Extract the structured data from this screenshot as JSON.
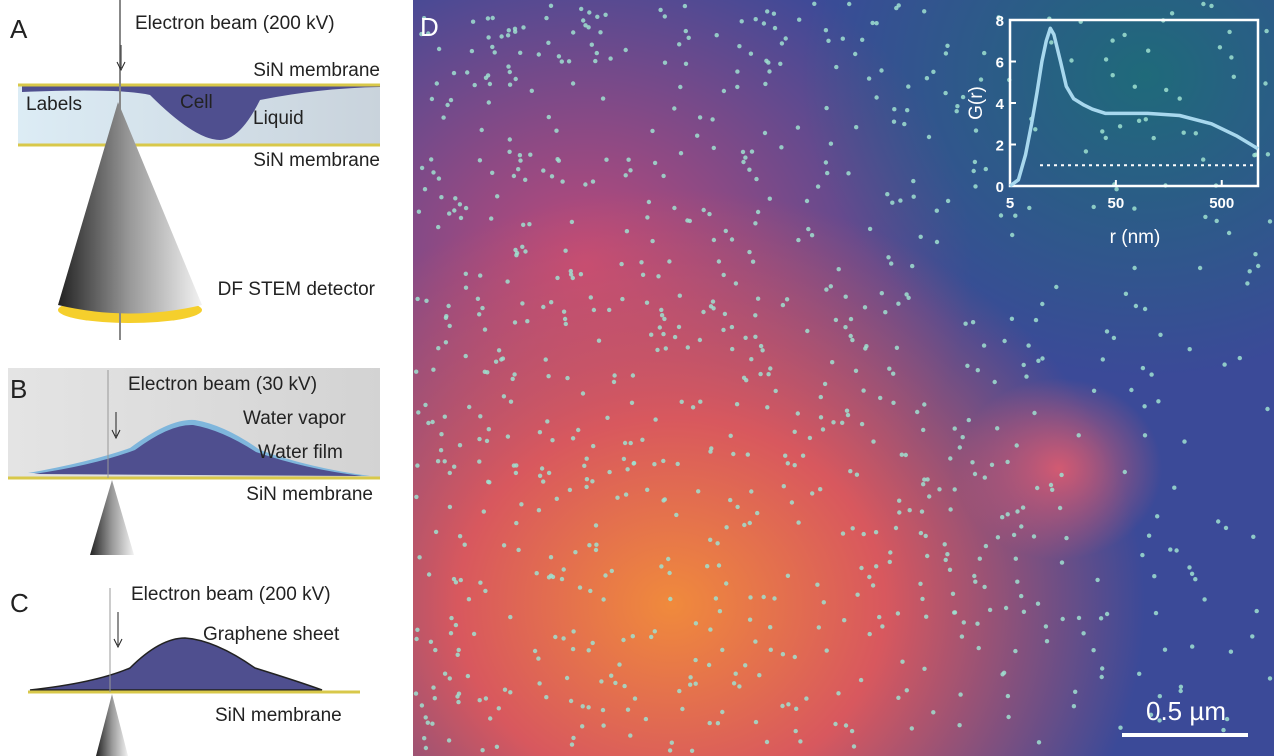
{
  "panel_a": {
    "letter": "A",
    "beam": "Electron beam (200 kV)",
    "top_membrane": "SiN membrane",
    "labels": "Labels",
    "cell": "Cell",
    "liquid": "Liquid",
    "bottom_membrane": "SiN membrane",
    "detector": "DF STEM detector"
  },
  "panel_b": {
    "letter": "B",
    "beam": "Electron beam (30 kV)",
    "vapor": "Water vapor",
    "film": "Water film",
    "membrane": "SiN membrane"
  },
  "panel_c": {
    "letter": "C",
    "beam": "Electron beam (200 kV)",
    "sheet": "Graphene sheet",
    "membrane": "SiN membrane"
  },
  "panel_d": {
    "letter": "D",
    "scale_bar": "0.5 µm"
  },
  "chart_data": {
    "type": "line",
    "x_label": "r (nm)",
    "y_label": "G(r)",
    "log_x": true,
    "color": "#a8d8ee",
    "x": [
      5,
      6,
      7,
      8,
      9,
      10,
      11,
      12,
      13,
      15,
      17,
      20,
      25,
      30,
      40,
      60,
      100,
      200,
      400,
      700,
      1100
    ],
    "values": [
      0,
      0.3,
      1.5,
      3,
      4.5,
      6,
      7,
      7.6,
      7.3,
      6,
      4.8,
      4.2,
      3.9,
      3.7,
      3.5,
      3.5,
      3.5,
      3.4,
      3,
      2.4,
      1.8
    ],
    "reference_line": 1,
    "xlim": [
      5,
      1100
    ],
    "ylim": [
      0,
      8
    ],
    "xticks": [
      5,
      50,
      500
    ],
    "yticks": [
      0,
      2,
      4,
      6,
      8
    ]
  }
}
